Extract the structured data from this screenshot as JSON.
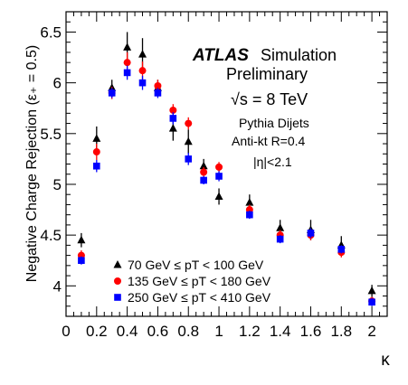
{
  "chart_data": {
    "type": "scatter",
    "xlabel": "κ",
    "ylabel": "Negative Charge Rejection (ε₊ = 0.5)",
    "xlim": [
      0,
      2.1
    ],
    "ylim": [
      3.7,
      6.7
    ],
    "x_ticks": [
      "0",
      "0.2",
      "0.4",
      "0.6",
      "0.8",
      "1",
      "1.2",
      "1.4",
      "1.6",
      "1.8",
      "2"
    ],
    "x_tick_values": [
      0,
      0.2,
      0.4,
      0.6,
      0.8,
      1.0,
      1.2,
      1.4,
      1.6,
      1.8,
      2.0
    ],
    "y_ticks": [
      "4",
      "4.5",
      "5",
      "5.5",
      "6",
      "6.5"
    ],
    "y_tick_values": [
      4,
      4.5,
      5,
      5.5,
      6,
      6.5
    ],
    "annotations": {
      "atlas": "ATLAS",
      "simulation": "Simulation",
      "preliminary": "Preliminary",
      "energy": "√s = 8 TeV",
      "generator": "Pythia Dijets",
      "jets": "Anti-kt R=0.4",
      "eta": "|η|<2.1"
    },
    "legend_position": "bottom-left",
    "series": [
      {
        "name": "70 GeV ≤ pT < 100 GeV",
        "marker": "triangle",
        "color": "#000000",
        "x": [
          0.1,
          0.2,
          0.3,
          0.4,
          0.5,
          0.6,
          0.7,
          0.8,
          0.9,
          1.0,
          1.2,
          1.4,
          1.6,
          1.8,
          2.0
        ],
        "y": [
          4.45,
          5.45,
          5.95,
          6.35,
          6.28,
          5.95,
          5.55,
          5.42,
          5.18,
          4.88,
          4.82,
          4.57,
          4.55,
          4.4,
          3.95
        ],
        "err": [
          0.07,
          0.12,
          0.08,
          0.15,
          0.16,
          0.08,
          0.12,
          0.12,
          0.07,
          0.08,
          0.08,
          0.08,
          0.1,
          0.09,
          0.06
        ]
      },
      {
        "name": "135 GeV ≤ pT < 180 GeV",
        "marker": "circle",
        "color": "#ff0000",
        "x": [
          0.1,
          0.2,
          0.3,
          0.4,
          0.5,
          0.6,
          0.7,
          0.8,
          0.9,
          1.0,
          1.2,
          1.4,
          1.6,
          1.8,
          2.0
        ],
        "y": [
          4.3,
          5.32,
          5.9,
          6.2,
          6.12,
          5.97,
          5.73,
          5.6,
          5.12,
          5.17,
          4.75,
          4.5,
          4.5,
          4.33,
          3.85
        ],
        "err": [
          0.05,
          0.08,
          0.06,
          0.1,
          0.09,
          0.06,
          0.06,
          0.06,
          0.05,
          0.05,
          0.05,
          0.05,
          0.05,
          0.05,
          0.04
        ]
      },
      {
        "name": "250 GeV ≤ pT < 410 GeV",
        "marker": "square",
        "color": "#0000ff",
        "x": [
          0.1,
          0.2,
          0.3,
          0.4,
          0.5,
          0.6,
          0.7,
          0.8,
          0.9,
          1.0,
          1.2,
          1.4,
          1.6,
          1.8,
          2.0
        ],
        "y": [
          4.25,
          5.18,
          5.9,
          6.1,
          6.0,
          5.9,
          5.65,
          5.25,
          5.04,
          5.08,
          4.7,
          4.46,
          4.52,
          4.36,
          3.84
        ],
        "err": [
          0.04,
          0.06,
          0.05,
          0.07,
          0.07,
          0.05,
          0.06,
          0.06,
          0.04,
          0.05,
          0.04,
          0.04,
          0.05,
          0.04,
          0.04
        ]
      }
    ]
  }
}
